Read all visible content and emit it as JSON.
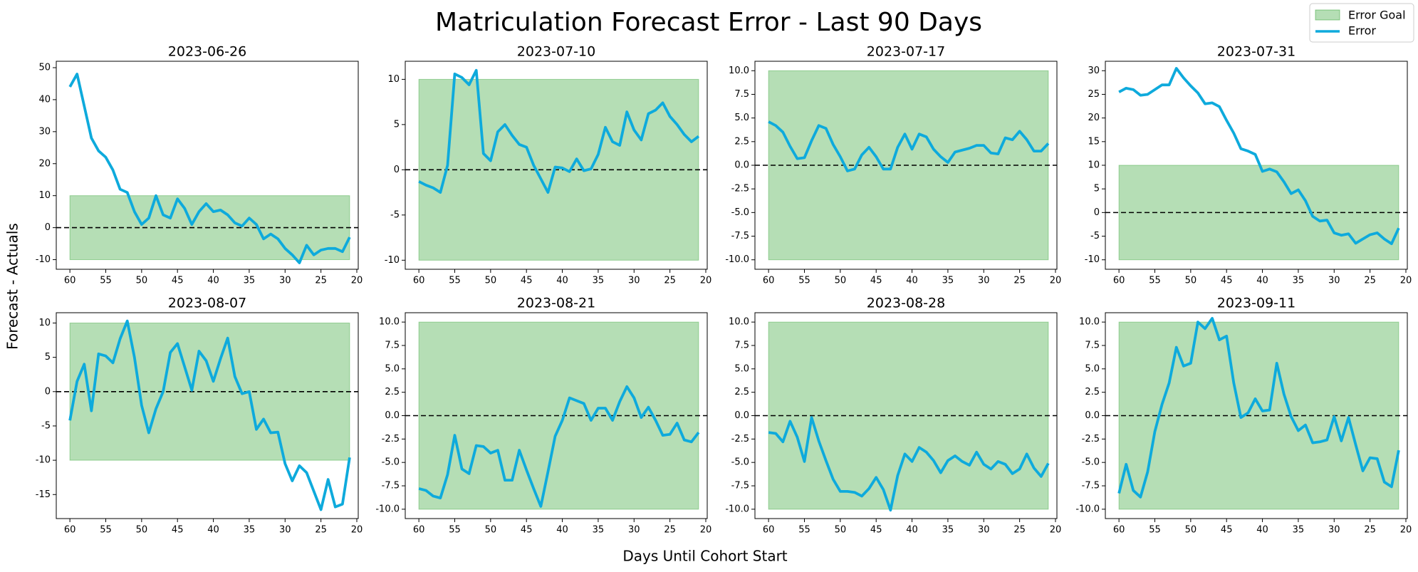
{
  "title": "Matriculation Forecast Error - Last 90 Days",
  "x_label": "Days Until Cohort Start",
  "y_label": "Forecast - Actuals",
  "legend": [
    {
      "name": "Error Goal",
      "color": "#2ca02c"
    },
    {
      "name": "Error",
      "color": "#0eaadc"
    }
  ],
  "chart_data": [
    {
      "type": "line",
      "title": "2023-06-26",
      "x": [
        60,
        59,
        58,
        57,
        56,
        55,
        54,
        53,
        52,
        51,
        50,
        49,
        48,
        47,
        46,
        45,
        44,
        43,
        42,
        41,
        40,
        39,
        38,
        37,
        36,
        35,
        34,
        33,
        32,
        31,
        30,
        29,
        28,
        27,
        26,
        25,
        24,
        23,
        22,
        21
      ],
      "values": [
        44,
        48,
        38,
        28,
        24,
        22,
        18,
        12,
        11,
        5,
        1,
        3,
        10,
        4,
        3,
        9,
        6,
        1,
        5,
        7.5,
        5,
        5.5,
        4,
        1.5,
        0.5,
        3,
        1,
        -3.5,
        -2,
        -3.5,
        -6.5,
        -8.5,
        -11,
        -5.5,
        -8.5,
        -7,
        -6.5,
        -6.5,
        -7.5,
        -3
      ],
      "band": [
        -10,
        10
      ],
      "band_x": [
        60,
        21
      ],
      "hline": 0,
      "xlim": [
        61.9,
        19.8
      ],
      "ylim": [
        -13,
        52
      ],
      "xticks": [
        60,
        55,
        50,
        45,
        40,
        35,
        30,
        25,
        20
      ],
      "yticks": [
        -10,
        0,
        10,
        20,
        30,
        40,
        50
      ]
    },
    {
      "type": "line",
      "title": "2023-07-10",
      "x": [
        60,
        59,
        58,
        57,
        56,
        55,
        54,
        53,
        52,
        51,
        50,
        49,
        48,
        47,
        46,
        45,
        44,
        43,
        42,
        41,
        40,
        39,
        38,
        37,
        36,
        35,
        34,
        33,
        32,
        31,
        30,
        29,
        28,
        27,
        26,
        25,
        24,
        23,
        22,
        21
      ],
      "values": [
        -1.3,
        -1.7,
        -2,
        -2.5,
        0.5,
        10.6,
        10.2,
        9.4,
        11,
        1.8,
        1,
        4.2,
        5,
        3.8,
        2.8,
        2.5,
        0.5,
        -1,
        -2.5,
        0.3,
        0.2,
        -0.2,
        1.2,
        -0.1,
        0.1,
        1.7,
        4.7,
        3.1,
        2.7,
        6.4,
        4.4,
        3.3,
        6.2,
        6.6,
        7.4,
        5.9,
        5,
        3.9,
        3.1,
        3.7
      ],
      "band": [
        -10,
        10
      ],
      "band_x": [
        60,
        21
      ],
      "hline": 0,
      "xlim": [
        61.9,
        19.8
      ],
      "ylim": [
        -11,
        12
      ],
      "xticks": [
        60,
        55,
        50,
        45,
        40,
        35,
        30,
        25,
        20
      ],
      "yticks": [
        -10,
        -5,
        0,
        5,
        10
      ]
    },
    {
      "type": "line",
      "title": "2023-07-17",
      "x": [
        60,
        59,
        58,
        57,
        56,
        55,
        54,
        53,
        52,
        51,
        50,
        49,
        48,
        47,
        46,
        45,
        44,
        43,
        42,
        41,
        40,
        39,
        38,
        37,
        36,
        35,
        34,
        33,
        32,
        31,
        30,
        29,
        28,
        27,
        26,
        25,
        24,
        23,
        22,
        21
      ],
      "values": [
        4.6,
        4.2,
        3.5,
        2,
        0.7,
        0.8,
        2.6,
        4.2,
        3.9,
        2.2,
        0.9,
        -0.6,
        -0.4,
        1.1,
        1.9,
        0.9,
        -0.4,
        -0.4,
        1.9,
        3.3,
        1.7,
        3.3,
        3,
        1.7,
        0.9,
        0.3,
        1.4,
        1.6,
        1.8,
        2.1,
        2.1,
        1.3,
        1.2,
        2.9,
        2.7,
        3.6,
        2.7,
        1.5,
        1.5,
        2.3
      ],
      "band": [
        -10,
        10
      ],
      "band_x": [
        60,
        21
      ],
      "hline": 0,
      "xlim": [
        61.9,
        19.8
      ],
      "ylim": [
        -11,
        11
      ],
      "xticks": [
        60,
        55,
        50,
        45,
        40,
        35,
        30,
        25,
        20
      ],
      "yticks": [
        {
          "value": -10,
          "label": "-10.0"
        },
        -7.5,
        {
          "value": -5,
          "label": "-5.0"
        },
        -2.5,
        {
          "value": 0,
          "label": "0.0"
        },
        2.5,
        {
          "value": 5,
          "label": "5.0"
        },
        7.5,
        {
          "value": 10,
          "label": "10.0"
        }
      ]
    },
    {
      "type": "line",
      "title": "2023-07-31",
      "x": [
        60,
        59,
        58,
        57,
        56,
        55,
        54,
        53,
        52,
        51,
        50,
        49,
        48,
        47,
        46,
        45,
        44,
        43,
        42,
        41,
        40,
        39,
        38,
        37,
        36,
        35,
        34,
        33,
        32,
        31,
        30,
        29,
        28,
        27,
        26,
        25,
        24,
        23,
        22,
        21
      ],
      "values": [
        25.5,
        26.3,
        26,
        24.8,
        25,
        26,
        27,
        27,
        30.5,
        28.5,
        26.8,
        25.3,
        23,
        23.2,
        22.4,
        19.5,
        16.8,
        13.5,
        13,
        12.3,
        8.7,
        9.2,
        8.6,
        6.5,
        4,
        4.8,
        2.5,
        -0.8,
        -1.8,
        -1.6,
        -4.3,
        -4.8,
        -4.5,
        -6.5,
        -5.6,
        -4.7,
        -4.3,
        -5.6,
        -6.6,
        -3.3
      ],
      "band": [
        -10,
        10
      ],
      "band_x": [
        60,
        21
      ],
      "hline": 0,
      "xlim": [
        61.9,
        19.8
      ],
      "ylim": [
        -12,
        32
      ],
      "xticks": [
        60,
        55,
        50,
        45,
        40,
        35,
        30,
        25,
        20
      ],
      "yticks": [
        -10,
        -5,
        0,
        5,
        10,
        15,
        20,
        25,
        30
      ]
    },
    {
      "type": "line",
      "title": "2023-08-07",
      "x": [
        60,
        59,
        58,
        57,
        56,
        55,
        54,
        53,
        52,
        51,
        50,
        49,
        48,
        47,
        46,
        45,
        44,
        43,
        42,
        41,
        40,
        39,
        38,
        37,
        36,
        35,
        34,
        33,
        32,
        31,
        30,
        29,
        28,
        27,
        26,
        25,
        24,
        23,
        22,
        21
      ],
      "values": [
        -4.2,
        1.5,
        4,
        -2.8,
        5.5,
        5.2,
        4.2,
        7.7,
        10.3,
        5,
        -2,
        -6,
        -2.5,
        0,
        5.7,
        7,
        3.6,
        0.2,
        5.9,
        4.5,
        1.5,
        4.8,
        7.8,
        2.2,
        -0.3,
        0,
        -5.5,
        -4,
        -6,
        -5.9,
        -10.5,
        -13,
        -10.8,
        -11.8,
        -14.5,
        -17.2,
        -12.8,
        -16.8,
        -16.4,
        -9.6
      ],
      "band": [
        -10,
        10
      ],
      "band_x": [
        60,
        21
      ],
      "hline": 0,
      "xlim": [
        61.9,
        19.8
      ],
      "ylim": [
        -18.5,
        11.5
      ],
      "xticks": [
        60,
        55,
        50,
        45,
        40,
        35,
        30,
        25,
        20
      ],
      "yticks": [
        -15,
        -10,
        -5,
        0,
        5,
        10
      ]
    },
    {
      "type": "line",
      "title": "2023-08-21",
      "x": [
        60,
        59,
        58,
        57,
        56,
        55,
        54,
        53,
        52,
        51,
        50,
        49,
        48,
        47,
        46,
        45,
        44,
        43,
        42,
        41,
        40,
        39,
        38,
        37,
        36,
        35,
        34,
        33,
        32,
        31,
        30,
        29,
        28,
        27,
        26,
        25,
        24,
        23,
        22,
        21
      ],
      "values": [
        -7.8,
        -8,
        -8.6,
        -8.8,
        -6.3,
        -2.1,
        -5.7,
        -6.2,
        -3.2,
        -3.3,
        -4,
        -3.7,
        -6.9,
        -6.9,
        -3.7,
        -5.8,
        -7.8,
        -9.7,
        -6,
        -2.2,
        -0.5,
        1.9,
        1.6,
        1.3,
        -0.5,
        0.8,
        0.8,
        -0.5,
        1.5,
        3.1,
        1.9,
        -0.2,
        0.9,
        -0.5,
        -2.1,
        -2,
        -0.8,
        -2.6,
        -2.8,
        -1.8
      ],
      "band": [
        -10,
        10
      ],
      "band_x": [
        60,
        21
      ],
      "hline": 0,
      "xlim": [
        61.9,
        19.8
      ],
      "ylim": [
        -11,
        11
      ],
      "xticks": [
        60,
        55,
        50,
        45,
        40,
        35,
        30,
        25,
        20
      ],
      "yticks": [
        {
          "value": -10,
          "label": "-10.0"
        },
        -7.5,
        {
          "value": -5,
          "label": "-5.0"
        },
        -2.5,
        {
          "value": 0,
          "label": "0.0"
        },
        2.5,
        {
          "value": 5,
          "label": "5.0"
        },
        7.5,
        {
          "value": 10,
          "label": "10.0"
        }
      ]
    },
    {
      "type": "line",
      "title": "2023-08-28",
      "x": [
        60,
        59,
        58,
        57,
        56,
        55,
        54,
        53,
        52,
        51,
        50,
        49,
        48,
        47,
        46,
        45,
        44,
        43,
        42,
        41,
        40,
        39,
        38,
        37,
        36,
        35,
        34,
        33,
        32,
        31,
        30,
        29,
        28,
        27,
        26,
        25,
        24,
        23,
        22,
        21
      ],
      "values": [
        -1.8,
        -1.9,
        -2.8,
        -0.6,
        -2.3,
        -4.9,
        -0.2,
        -2.7,
        -4.8,
        -6.8,
        -8.1,
        -8.1,
        -8.2,
        -8.6,
        -7.8,
        -6.6,
        -7.9,
        -10.1,
        -6.4,
        -4.1,
        -4.9,
        -3.4,
        -3.9,
        -4.8,
        -6.1,
        -4.8,
        -4.3,
        -4.9,
        -5.3,
        -3.9,
        -5.2,
        -5.7,
        -4.9,
        -5.2,
        -6.2,
        -5.7,
        -4.1,
        -5.6,
        -6.5,
        -5.1
      ],
      "band": [
        -10,
        10
      ],
      "band_x": [
        60,
        21
      ],
      "hline": 0,
      "xlim": [
        61.9,
        19.8
      ],
      "ylim": [
        -11,
        11
      ],
      "xticks": [
        60,
        55,
        50,
        45,
        40,
        35,
        30,
        25,
        20
      ],
      "yticks": [
        {
          "value": -10,
          "label": "-10.0"
        },
        -7.5,
        {
          "value": -5,
          "label": "-5.0"
        },
        -2.5,
        {
          "value": 0,
          "label": "0.0"
        },
        2.5,
        {
          "value": 5,
          "label": "5.0"
        },
        7.5,
        {
          "value": 10,
          "label": "10.0"
        }
      ]
    },
    {
      "type": "line",
      "title": "2023-09-11",
      "x": [
        60,
        59,
        58,
        57,
        56,
        55,
        54,
        53,
        52,
        51,
        50,
        49,
        48,
        47,
        46,
        45,
        44,
        43,
        42,
        41,
        40,
        39,
        38,
        37,
        36,
        35,
        34,
        33,
        32,
        31,
        30,
        29,
        28,
        27,
        26,
        25,
        24,
        23,
        22,
        21
      ],
      "values": [
        -8.3,
        -5.2,
        -8,
        -8.7,
        -6,
        -1.7,
        1.2,
        3.5,
        7.3,
        5.3,
        5.6,
        10,
        9.3,
        10.4,
        8.1,
        8.5,
        3.5,
        -0.2,
        0.3,
        1.8,
        0.5,
        0.6,
        5.6,
        2.3,
        -0.1,
        -1.6,
        -1,
        -2.9,
        -2.8,
        -2.6,
        -0.1,
        -2.7,
        -0.2,
        -3.1,
        -5.9,
        -4.5,
        -4.6,
        -7.1,
        -7.6,
        -3.7
      ],
      "band": [
        -10,
        10
      ],
      "band_x": [
        60,
        21
      ],
      "hline": 0,
      "xlim": [
        61.9,
        19.8
      ],
      "ylim": [
        -11,
        11
      ],
      "xticks": [
        60,
        55,
        50,
        45,
        40,
        35,
        30,
        25,
        20
      ],
      "yticks": [
        {
          "value": -10,
          "label": "-10.0"
        },
        -7.5,
        {
          "value": -5,
          "label": "-5.0"
        },
        -2.5,
        {
          "value": 0,
          "label": "0.0"
        },
        2.5,
        {
          "value": 5,
          "label": "5.0"
        },
        7.5,
        {
          "value": 10,
          "label": "10.0"
        }
      ]
    }
  ]
}
